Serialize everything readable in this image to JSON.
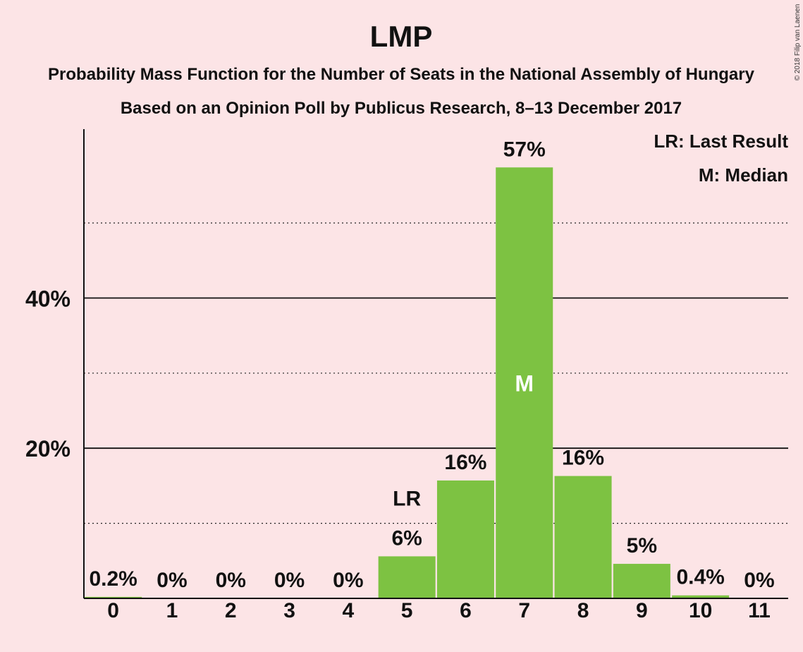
{
  "chart_data": {
    "type": "bar",
    "title": "LMP",
    "subtitle_1": "Probability Mass Function for the Number of Seats in the National Assembly of Hungary",
    "subtitle_2": "Based on an Opinion Poll by Publicus Research, 8–13 December 2017",
    "copyright": "© 2018 Filip van Laenen",
    "categories": [
      "0",
      "1",
      "2",
      "3",
      "4",
      "5",
      "6",
      "7",
      "8",
      "9",
      "10",
      "11"
    ],
    "values": [
      0.2,
      0,
      0,
      0,
      0,
      5.6,
      15.7,
      57.4,
      16.3,
      4.6,
      0.4,
      0
    ],
    "data_labels": [
      "0.2%",
      "0%",
      "0%",
      "0%",
      "0%",
      "6%",
      "16%",
      "57%",
      "16%",
      "5%",
      "0.4%",
      "0%"
    ],
    "ylim": [
      0,
      62.5
    ],
    "yticks": [
      20,
      40
    ],
    "ytick_labels": [
      "20%",
      "40%"
    ],
    "minor_gridlines": [
      10,
      30,
      50
    ],
    "last_result_index": 5,
    "last_result_label": "LR",
    "median_index": 7,
    "median_label": "M",
    "legend": [
      "LR: Last Result",
      "M: Median"
    ],
    "legend_position": "top-right",
    "bar_color": "#7dc242",
    "background_color": "#fce4e6"
  }
}
